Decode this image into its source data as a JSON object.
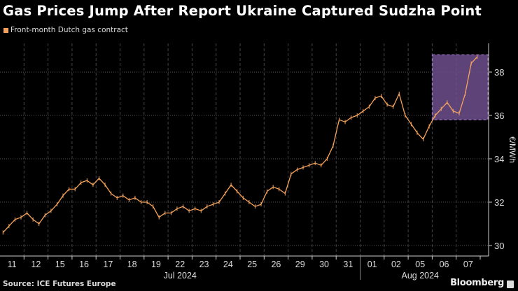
{
  "title": "Gas Prices Jump After Report Ukraine Captured Sudzha Point",
  "source": "Source: ICE Futures Europe",
  "logo": "Bloomberg",
  "colors": {
    "series": "#f5a35c",
    "highlight": "#6e4f8e",
    "highlight_border": "#a985d0",
    "background": "#000000"
  },
  "chart_data": {
    "type": "line",
    "title": "Gas Prices Jump After Report Ukraine Captured Sudzha Point",
    "ylabel": "€/MWh",
    "ylim": [
      29.5,
      39.2
    ],
    "yticks": [
      30,
      32,
      34,
      36,
      38
    ],
    "grid": true,
    "legend": "top-left",
    "categories": [
      "11",
      "12",
      "15",
      "16",
      "17",
      "18",
      "19",
      "22",
      "23",
      "24",
      "25",
      "26",
      "29",
      "30",
      "31",
      "01",
      "02",
      "05",
      "06",
      "07"
    ],
    "month_labels": [
      {
        "label": "Jul 2024",
        "from": "11",
        "to": "31"
      },
      {
        "label": "Aug 2024",
        "from": "01",
        "to": "07"
      }
    ],
    "series": [
      {
        "name": "Front-month Dutch gas contract",
        "values_per_day": [
          [
            30.6,
            30.9,
            31.2,
            31.3
          ],
          [
            31.5,
            31.2,
            31.0,
            31.4
          ],
          [
            31.6,
            31.9,
            32.3,
            32.6
          ],
          [
            32.6,
            32.9,
            33.0,
            32.8
          ],
          [
            33.1,
            32.8,
            32.4,
            32.2
          ],
          [
            32.3,
            32.1,
            32.2,
            32.0
          ],
          [
            32.0,
            31.8,
            31.3,
            31.5
          ],
          [
            31.5,
            31.7,
            31.8,
            31.6
          ],
          [
            31.7,
            31.6,
            31.8,
            31.9
          ],
          [
            32.0,
            32.4,
            32.8,
            32.5
          ],
          [
            32.2,
            32.0,
            31.8,
            31.9
          ],
          [
            32.5,
            32.7,
            32.6,
            32.4
          ],
          [
            33.3,
            33.5,
            33.6,
            33.7
          ],
          [
            33.8,
            33.7,
            34.0,
            34.6
          ],
          [
            35.8,
            35.7,
            35.9,
            36.0
          ],
          [
            36.2,
            36.4,
            36.8,
            36.9
          ],
          [
            36.5,
            36.4,
            37.0,
            36.0
          ],
          [
            35.6,
            35.2,
            34.9,
            35.5
          ],
          [
            36.0,
            36.3,
            36.6,
            36.2
          ],
          [
            36.1,
            37.0,
            38.4,
            38.7
          ]
        ]
      }
    ],
    "highlight": {
      "x_from": "06",
      "x_to": "07",
      "y_from": 35.8,
      "y_to": 38.8
    }
  }
}
